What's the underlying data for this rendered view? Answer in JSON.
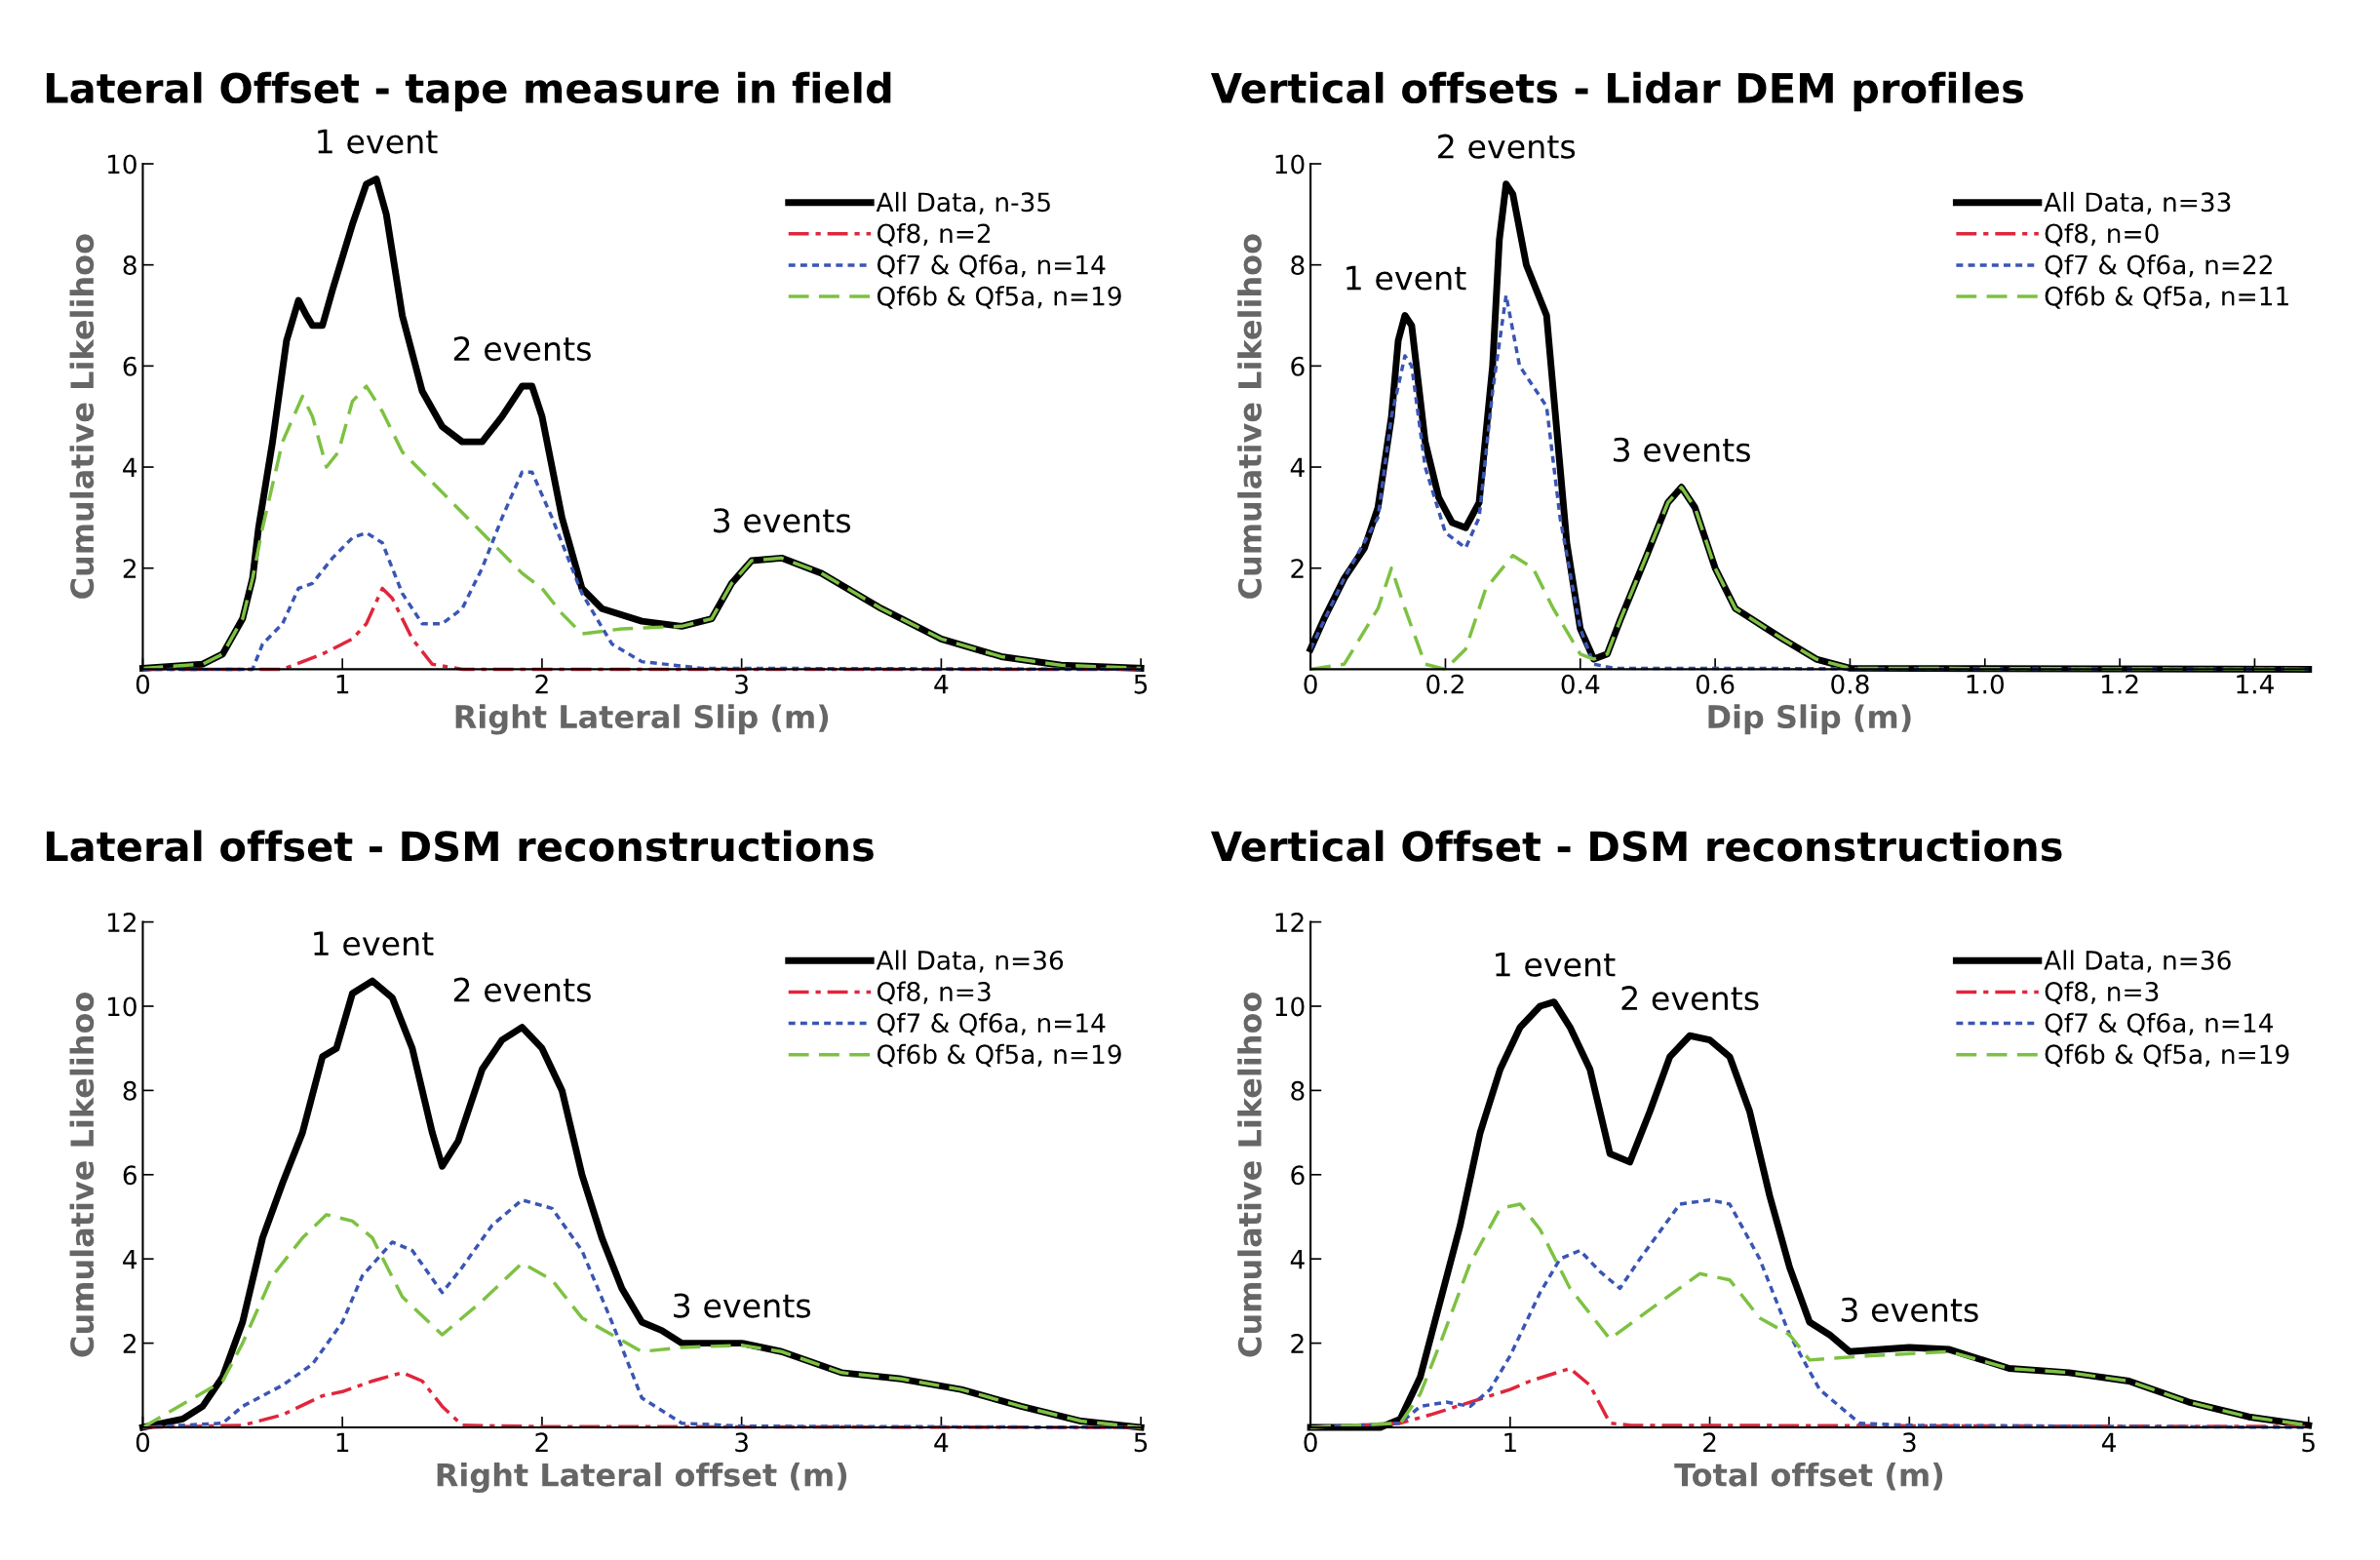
{
  "chart_data": [
    {
      "type": "line",
      "title": "Lateral Offset - tape measure in field",
      "xlabel": "Right Lateral Slip (m)",
      "ylabel": "Cumulative Likelihoo",
      "xlim": [
        0,
        5
      ],
      "xticks": [
        0,
        1,
        2,
        3,
        4,
        5
      ],
      "ylim": [
        0,
        10
      ],
      "yticks": [
        2,
        4,
        6,
        8,
        10
      ],
      "grid": false,
      "legend": "top right",
      "marker": "none",
      "annotations": [
        {
          "text": "1 event",
          "x": 1.17,
          "y": 9.7
        },
        {
          "text": "2 events",
          "x": 1.9,
          "y": 5.6
        },
        {
          "text": "3 events",
          "x": 3.2,
          "y": 2.2
        }
      ],
      "series": [
        {
          "name": "All Data, n-35",
          "color": "#000000",
          "line_style": "solid",
          "x": [
            0,
            0.3,
            0.4,
            0.5,
            0.55,
            0.58,
            0.65,
            0.72,
            0.78,
            0.82,
            0.85,
            0.9,
            0.95,
            1.05,
            1.12,
            1.17,
            1.22,
            1.3,
            1.4,
            1.5,
            1.6,
            1.7,
            1.8,
            1.9,
            1.95,
            2.0,
            2.1,
            2.2,
            2.3,
            2.5,
            2.7,
            2.85,
            2.95,
            3.05,
            3.2,
            3.4,
            3.7,
            4.0,
            4.3,
            4.6,
            5
          ],
          "values": [
            0.02,
            0.1,
            0.3,
            1.0,
            1.8,
            2.8,
            4.5,
            6.5,
            7.3,
            7.0,
            6.8,
            6.8,
            7.5,
            8.8,
            9.6,
            9.7,
            9.0,
            7.0,
            5.5,
            4.8,
            4.5,
            4.5,
            5.0,
            5.6,
            5.6,
            5.0,
            3.0,
            1.6,
            1.2,
            0.95,
            0.85,
            1.0,
            1.7,
            2.15,
            2.2,
            1.9,
            1.2,
            0.6,
            0.25,
            0.08,
            0.02
          ]
        },
        {
          "name": "Qf8, n=2",
          "color": "#e0263c",
          "line_style": "dashdot",
          "x": [
            0,
            0.7,
            0.9,
            1.05,
            1.12,
            1.2,
            1.25,
            1.35,
            1.45,
            1.6,
            5
          ],
          "values": [
            0,
            0,
            0.3,
            0.6,
            0.9,
            1.6,
            1.4,
            0.6,
            0.1,
            0,
            0
          ]
        },
        {
          "name": "Qf7 & Qf6a, n=14",
          "color": "#3a55b4",
          "line_style": "dotted",
          "x": [
            0,
            0.55,
            0.6,
            0.7,
            0.78,
            0.85,
            0.95,
            1.05,
            1.12,
            1.2,
            1.3,
            1.4,
            1.5,
            1.6,
            1.7,
            1.8,
            1.9,
            1.95,
            2.05,
            2.2,
            2.35,
            2.5,
            2.8,
            5
          ],
          "values": [
            0,
            0,
            0.5,
            0.9,
            1.6,
            1.7,
            2.2,
            2.6,
            2.7,
            2.5,
            1.5,
            0.9,
            0.9,
            1.2,
            2.0,
            3.0,
            3.9,
            3.9,
            3.0,
            1.5,
            0.5,
            0.15,
            0.02,
            0
          ]
        },
        {
          "name": "Qf6b & Qf5a, n=19",
          "color": "#7dc142",
          "line_style": "dashed",
          "x": [
            0,
            0.3,
            0.4,
            0.5,
            0.55,
            0.6,
            0.7,
            0.8,
            0.85,
            0.92,
            0.98,
            1.05,
            1.12,
            1.2,
            1.3,
            1.5,
            1.7,
            1.9,
            2.0,
            2.1,
            2.2,
            2.4,
            2.7,
            2.85,
            2.95,
            3.05,
            3.2,
            3.4,
            3.7,
            4.0,
            4.3,
            4.6,
            5
          ],
          "values": [
            0.02,
            0.1,
            0.3,
            1.0,
            1.8,
            2.8,
            4.5,
            5.4,
            5.0,
            4.0,
            4.3,
            5.3,
            5.6,
            5.1,
            4.3,
            3.5,
            2.7,
            1.9,
            1.6,
            1.1,
            0.7,
            0.8,
            0.85,
            1.0,
            1.7,
            2.15,
            2.2,
            1.9,
            1.2,
            0.6,
            0.25,
            0.08,
            0.02
          ]
        }
      ]
    },
    {
      "type": "line",
      "title": "Vertical offsets - Lidar DEM profiles",
      "xlabel": "Dip Slip (m)",
      "ylabel": "Cumulative Likelihoo",
      "xlim": [
        0,
        1.48
      ],
      "xticks": [
        0,
        0.2,
        0.4,
        0.6,
        0.8,
        {
          "value": 1,
          "label": "1.0"
        },
        1.2,
        1.4
      ],
      "ylim": [
        0,
        10
      ],
      "yticks": [
        2,
        4,
        6,
        8,
        10
      ],
      "grid": false,
      "legend": "top right",
      "marker": "none",
      "annotations": [
        {
          "text": "1 event",
          "x": 0.14,
          "y": 7.0
        },
        {
          "text": "2 events",
          "x": 0.29,
          "y": 9.6
        },
        {
          "text": "3 events",
          "x": 0.55,
          "y": 3.6
        }
      ],
      "series": [
        {
          "name": "All Data, n=33",
          "color": "#000000",
          "line_style": "solid",
          "x": [
            0,
            0.02,
            0.05,
            0.08,
            0.1,
            0.12,
            0.13,
            0.14,
            0.15,
            0.17,
            0.19,
            0.21,
            0.23,
            0.25,
            0.27,
            0.28,
            0.29,
            0.3,
            0.32,
            0.35,
            0.36,
            0.38,
            0.4,
            0.42,
            0.44,
            0.46,
            0.5,
            0.53,
            0.55,
            0.57,
            0.6,
            0.63,
            0.7,
            0.75,
            0.8,
            1.48
          ],
          "values": [
            0.4,
            1.0,
            1.8,
            2.4,
            3.2,
            5.0,
            6.5,
            7.0,
            6.8,
            4.5,
            3.4,
            2.9,
            2.8,
            3.3,
            6.0,
            8.5,
            9.6,
            9.4,
            8.0,
            7.0,
            5.5,
            2.5,
            0.8,
            0.2,
            0.3,
            1.0,
            2.3,
            3.3,
            3.6,
            3.2,
            2.0,
            1.2,
            0.6,
            0.2,
            0.02,
            0
          ]
        },
        {
          "name": "Qf8, n=0",
          "color": "#e0263c",
          "line_style": "dashdot"
        },
        {
          "name": "Qf7 & Qf6a, n=22",
          "color": "#3a55b4",
          "line_style": "dotted",
          "x": [
            0,
            0.05,
            0.1,
            0.12,
            0.14,
            0.15,
            0.17,
            0.2,
            0.23,
            0.25,
            0.27,
            0.29,
            0.31,
            0.35,
            0.37,
            0.4,
            0.42,
            0.45,
            1.48
          ],
          "values": [
            0.4,
            1.8,
            3.0,
            5.0,
            6.2,
            6.0,
            4.0,
            2.7,
            2.4,
            3.0,
            5.5,
            7.4,
            6.0,
            5.2,
            3.0,
            0.8,
            0.1,
            0.02,
            0
          ]
        },
        {
          "name": "Qf6b & Qf5a, n=11",
          "color": "#7dc142",
          "line_style": "dashed",
          "x": [
            0,
            0.05,
            0.1,
            0.12,
            0.14,
            0.17,
            0.2,
            0.23,
            0.26,
            0.3,
            0.33,
            0.36,
            0.4,
            0.42,
            0.44,
            0.46,
            0.5,
            0.53,
            0.55,
            0.57,
            0.6,
            0.63,
            0.7,
            0.75,
            0.8,
            1.48
          ],
          "values": [
            0,
            0.1,
            1.2,
            2.0,
            1.2,
            0.1,
            0,
            0.4,
            1.6,
            2.25,
            2.0,
            1.2,
            0.3,
            0.2,
            0.3,
            1.0,
            2.3,
            3.3,
            3.6,
            3.2,
            2.0,
            1.2,
            0.6,
            0.2,
            0.02,
            0
          ]
        }
      ]
    },
    {
      "type": "line",
      "title": "Lateral offset - DSM reconstructions",
      "xlabel": "Right Lateral offset (m)",
      "ylabel": "Cumulative Likelihoo",
      "xlim": [
        0,
        5
      ],
      "xticks": [
        0,
        1,
        2,
        3,
        4,
        5
      ],
      "ylim": [
        0,
        12
      ],
      "yticks": [
        2,
        4,
        6,
        8,
        10,
        12
      ],
      "grid": false,
      "legend": "top right",
      "marker": "none",
      "annotations": [
        {
          "text": "1 event",
          "x": 1.15,
          "y": 10.6
        },
        {
          "text": "2 events",
          "x": 1.9,
          "y": 9.5
        },
        {
          "text": "3 events",
          "x": 3.0,
          "y": 2.0
        }
      ],
      "series": [
        {
          "name": "All Data, n=36",
          "color": "#000000",
          "line_style": "solid",
          "x": [
            0,
            0.2,
            0.3,
            0.4,
            0.5,
            0.6,
            0.7,
            0.8,
            0.9,
            0.97,
            1.05,
            1.15,
            1.25,
            1.35,
            1.45,
            1.5,
            1.58,
            1.7,
            1.8,
            1.9,
            2.0,
            2.1,
            2.2,
            2.3,
            2.4,
            2.5,
            2.6,
            2.7,
            3.0,
            3.2,
            3.5,
            3.8,
            4.1,
            4.4,
            4.7,
            5
          ],
          "values": [
            0,
            0.2,
            0.5,
            1.2,
            2.5,
            4.5,
            5.8,
            7.0,
            8.8,
            9.0,
            10.3,
            10.6,
            10.2,
            9.0,
            7.0,
            6.2,
            6.8,
            8.5,
            9.2,
            9.5,
            9.0,
            8.0,
            6.0,
            4.5,
            3.3,
            2.5,
            2.3,
            2.0,
            2.0,
            1.8,
            1.3,
            1.15,
            0.9,
            0.5,
            0.15,
            0
          ]
        },
        {
          "name": "Qf8, n=3",
          "color": "#e0263c",
          "line_style": "dashdot",
          "x": [
            0,
            0.5,
            0.7,
            0.9,
            1.0,
            1.15,
            1.3,
            1.4,
            1.5,
            1.6,
            2,
            5
          ],
          "values": [
            0,
            0.05,
            0.3,
            0.75,
            0.85,
            1.1,
            1.3,
            1.1,
            0.5,
            0.05,
            0.02,
            0
          ]
        },
        {
          "name": "Qf7 & Qf6a, n=14",
          "color": "#3a55b4",
          "line_style": "dotted",
          "x": [
            0,
            0.4,
            0.5,
            0.7,
            0.85,
            1.0,
            1.1,
            1.25,
            1.35,
            1.5,
            1.6,
            1.75,
            1.9,
            2.05,
            2.2,
            2.35,
            2.5,
            2.7,
            3.0,
            5
          ],
          "values": [
            0,
            0.1,
            0.5,
            1.0,
            1.5,
            2.5,
            3.6,
            4.4,
            4.2,
            3.2,
            3.8,
            4.8,
            5.4,
            5.2,
            4.2,
            2.5,
            0.7,
            0.1,
            0.03,
            0
          ]
        },
        {
          "name": "Qf6b & Qf5a, n=19",
          "color": "#7dc142",
          "line_style": "dashed",
          "x": [
            0,
            0.4,
            0.5,
            0.65,
            0.8,
            0.92,
            1.05,
            1.15,
            1.3,
            1.5,
            1.7,
            1.9,
            2.05,
            2.2,
            2.35,
            2.5,
            2.7,
            3.0,
            3.2,
            3.5,
            3.8,
            4.1,
            4.4,
            4.7,
            5
          ],
          "values": [
            0,
            1.1,
            2.0,
            3.6,
            4.5,
            5.05,
            4.9,
            4.5,
            3.1,
            2.2,
            3.0,
            3.9,
            3.5,
            2.6,
            2.2,
            1.8,
            1.9,
            1.95,
            1.8,
            1.3,
            1.15,
            0.9,
            0.5,
            0.15,
            0
          ]
        }
      ]
    },
    {
      "type": "line",
      "title": "Vertical Offset - DSM reconstructions",
      "xlabel": "Total offset (m)",
      "ylabel": "Cumulative Likelihoo",
      "xlim": [
        0,
        5
      ],
      "xticks": [
        0,
        1,
        2,
        3,
        4,
        5
      ],
      "ylim": [
        0,
        12
      ],
      "yticks": [
        2,
        4,
        6,
        8,
        10,
        12
      ],
      "grid": false,
      "legend": "top right",
      "marker": "none",
      "annotations": [
        {
          "text": "1 event",
          "x": 1.22,
          "y": 10.1
        },
        {
          "text": "2 events",
          "x": 1.9,
          "y": 9.3
        },
        {
          "text": "3 events",
          "x": 3.0,
          "y": 1.9
        }
      ],
      "series": [
        {
          "name": "All Data, n=36",
          "color": "#000000",
          "line_style": "solid",
          "x": [
            0,
            0.35,
            0.45,
            0.55,
            0.65,
            0.75,
            0.85,
            0.95,
            1.05,
            1.15,
            1.22,
            1.3,
            1.4,
            1.5,
            1.6,
            1.7,
            1.8,
            1.9,
            2.0,
            2.1,
            2.2,
            2.3,
            2.4,
            2.5,
            2.6,
            2.7,
            3.0,
            3.2,
            3.5,
            3.8,
            4.1,
            4.4,
            4.7,
            5
          ],
          "values": [
            0,
            0,
            0.2,
            1.2,
            3.0,
            4.8,
            7.0,
            8.5,
            9.5,
            10.0,
            10.1,
            9.5,
            8.5,
            6.5,
            6.3,
            7.5,
            8.8,
            9.3,
            9.2,
            8.8,
            7.5,
            5.5,
            3.8,
            2.5,
            2.2,
            1.8,
            1.9,
            1.85,
            1.4,
            1.3,
            1.1,
            0.6,
            0.25,
            0.05
          ]
        },
        {
          "name": "Qf8, n=3",
          "color": "#e0263c",
          "line_style": "dashdot",
          "x": [
            0,
            0.45,
            0.6,
            0.8,
            1.0,
            1.1,
            1.3,
            1.4,
            1.5,
            1.6,
            5
          ],
          "values": [
            0,
            0.1,
            0.3,
            0.6,
            0.9,
            1.1,
            1.4,
            1.0,
            0.1,
            0.05,
            0.02
          ]
        },
        {
          "name": "Qf7 & Qf6a, n=14",
          "color": "#3a55b4",
          "line_style": "dotted",
          "x": [
            0,
            0.45,
            0.55,
            0.68,
            0.8,
            0.9,
            1.0,
            1.15,
            1.25,
            1.35,
            1.45,
            1.55,
            1.65,
            1.85,
            2.0,
            2.1,
            2.25,
            2.4,
            2.55,
            2.75,
            3,
            5
          ],
          "values": [
            0,
            0.1,
            0.5,
            0.6,
            0.5,
            0.9,
            1.7,
            3.2,
            4.0,
            4.2,
            3.7,
            3.3,
            4.0,
            5.3,
            5.4,
            5.3,
            4.0,
            2.2,
            0.9,
            0.1,
            0.05,
            0
          ]
        },
        {
          "name": "Qf6b & Qf5a, n=19",
          "color": "#7dc142",
          "line_style": "dashed",
          "x": [
            0,
            0.45,
            0.55,
            0.65,
            0.8,
            0.95,
            1.05,
            1.15,
            1.3,
            1.5,
            1.7,
            1.95,
            2.1,
            2.25,
            2.4,
            2.5,
            2.8,
            3.2,
            3.5,
            3.8,
            4.1,
            4.4,
            4.7,
            5
          ],
          "values": [
            0,
            0.1,
            0.8,
            2.0,
            3.9,
            5.2,
            5.3,
            4.7,
            3.3,
            2.1,
            2.8,
            3.65,
            3.5,
            2.6,
            2.2,
            1.6,
            1.7,
            1.8,
            1.4,
            1.3,
            1.1,
            0.6,
            0.25,
            0.05
          ]
        }
      ]
    }
  ]
}
